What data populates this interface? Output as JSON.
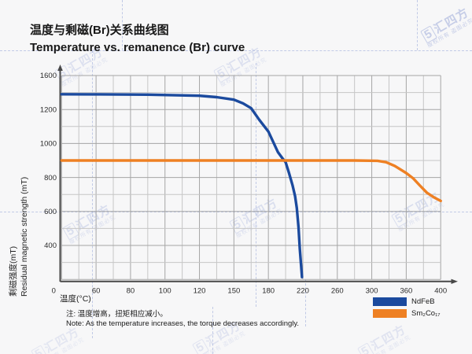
{
  "header": {
    "title_zh": "温度与剩磁(Br)关系曲线图",
    "title_en": "Temperature vs. remanence (Br) curve"
  },
  "note": {
    "line_zh": "注: 温度增高，扭矩相应减小。",
    "line_en": "Note: As the temperature increases, the torque decreases accordingly."
  },
  "watermark": {
    "logo": "5",
    "brand": "汇四方",
    "small": "版权所有 盗图必究"
  },
  "colors": {
    "background": "#f7f7f8",
    "ndfeb_blue": "#1b4a9e",
    "smco_orange": "#ee8023",
    "grid_major": "#a5a5a5",
    "grid_minor": "#c6c6c6",
    "axis": "#484848",
    "tick_text": "#2b2b2b"
  },
  "chart_data": {
    "type": "line",
    "title": "Temperature vs. remanence (Br) curve",
    "xlabel": "温度(°C)",
    "ylabel_zh": "剩磁强度(mT)",
    "ylabel_en": "Residual magnetic strength (mT)",
    "x_ticks": [
      0,
      60,
      80,
      100,
      120,
      150,
      180,
      220,
      260,
      300,
      360,
      400
    ],
    "y_tick_stops": [
      1600,
      1400,
      1200,
      1100,
      1000,
      900,
      800,
      700,
      600,
      500,
      400,
      200,
      0
    ],
    "y_tick_labels": [
      1600,
      1200,
      1000,
      800,
      600,
      400
    ],
    "origin_label": "0",
    "grid": true,
    "legend_position": "bottom-right",
    "series": [
      {
        "name": "NdFeB",
        "color": "#1b4a9e",
        "points": [
          [
            0,
            1380
          ],
          [
            50,
            1379
          ],
          [
            90,
            1375
          ],
          [
            120,
            1362
          ],
          [
            135,
            1345
          ],
          [
            150,
            1316
          ],
          [
            158,
            1272
          ],
          [
            165,
            1215
          ],
          [
            172,
            1140
          ],
          [
            180,
            1070
          ],
          [
            186,
            1005
          ],
          [
            191,
            950
          ],
          [
            196,
            915
          ],
          [
            200,
            890
          ],
          [
            204,
            826
          ],
          [
            208,
            755
          ],
          [
            211,
            690
          ],
          [
            213,
            620
          ],
          [
            215,
            505
          ],
          [
            216.5,
            360
          ],
          [
            217.5,
            230
          ],
          [
            218.5,
            100
          ],
          [
            219,
            28
          ]
        ]
      },
      {
        "name": "Sm₂Co₁₇",
        "color": "#ee8023",
        "points": [
          [
            0,
            900
          ],
          [
            100,
            900
          ],
          [
            200,
            900
          ],
          [
            280,
            900
          ],
          [
            310,
            898
          ],
          [
            325,
            890
          ],
          [
            340,
            868
          ],
          [
            352,
            843
          ],
          [
            360,
            826
          ],
          [
            368,
            795
          ],
          [
            376,
            752
          ],
          [
            384,
            710
          ],
          [
            392,
            684
          ],
          [
            400,
            662
          ]
        ]
      }
    ]
  }
}
